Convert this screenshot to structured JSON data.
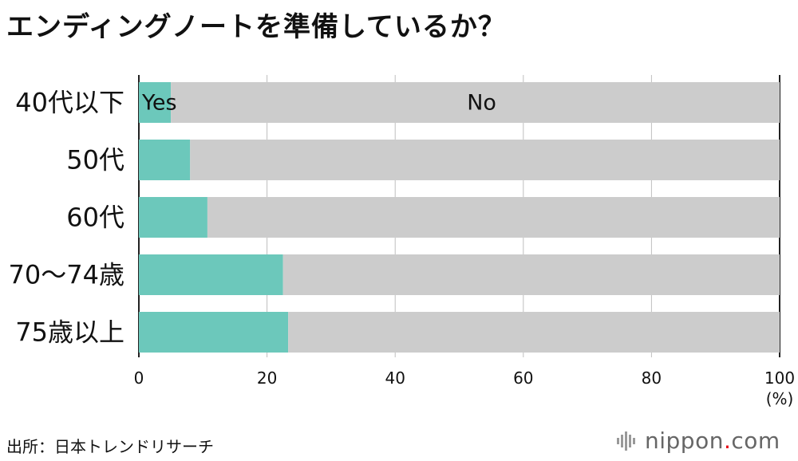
{
  "title": "エンディングノートを準備しているか？",
  "source": "出所：日本トレンドリサーチ",
  "logo": {
    "name": "nippon",
    "dot": ".",
    "suffix": "com"
  },
  "colors": {
    "yes": "#6cc8bb",
    "no": "#cccccc",
    "grid": "#bfbfbf",
    "axis": "#222222",
    "logo_gray": "#666666",
    "logo_dot": "#e60012"
  },
  "chart_data": {
    "type": "bar",
    "orientation": "horizontal",
    "stacked": true,
    "categories": [
      "40代以下",
      "50代",
      "60代",
      "70〜74歳",
      "75歳以上"
    ],
    "series": [
      {
        "name": "Yes",
        "values": [
          5,
          8,
          10.7,
          22.5,
          23.3
        ]
      },
      {
        "name": "No",
        "values": [
          95,
          92,
          89.3,
          77.5,
          76.7
        ]
      }
    ],
    "xlim": [
      0,
      100
    ],
    "xticks": [
      "0",
      "20",
      "40",
      "60",
      "80",
      "100"
    ],
    "x_unit": "(%)",
    "grid": true,
    "legend": "inline labels on first bar"
  }
}
